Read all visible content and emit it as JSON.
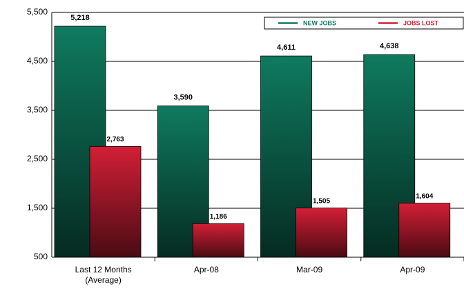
{
  "chart_data": {
    "type": "bar",
    "categories": [
      "Last 12 Months (Average)",
      "Apr-08",
      "Mar-09",
      "Apr-09"
    ],
    "series": [
      {
        "name": "NEW JOBS",
        "color": "#0f7a5f",
        "values": [
          5218,
          3590,
          4611,
          4638
        ],
        "value_labels": [
          "5,218",
          "3,590",
          "4,611",
          "4,638"
        ]
      },
      {
        "name": "JOBS LOST",
        "color": "#d21f36",
        "values": [
          2763,
          1186,
          1505,
          1604
        ],
        "value_labels": [
          "2,763",
          "1,186",
          "1,505",
          "1,604"
        ]
      }
    ],
    "ylim": [
      500,
      5500
    ],
    "yticks": [
      {
        "value": 500,
        "label": "500"
      },
      {
        "value": 1500,
        "label": "1,500"
      },
      {
        "value": 2500,
        "label": "2,500"
      },
      {
        "value": 3500,
        "label": "3,500"
      },
      {
        "value": 4500,
        "label": "4,500"
      },
      {
        "value": 5500,
        "label": "5,500"
      }
    ],
    "grid": true,
    "legend": "top-right"
  }
}
